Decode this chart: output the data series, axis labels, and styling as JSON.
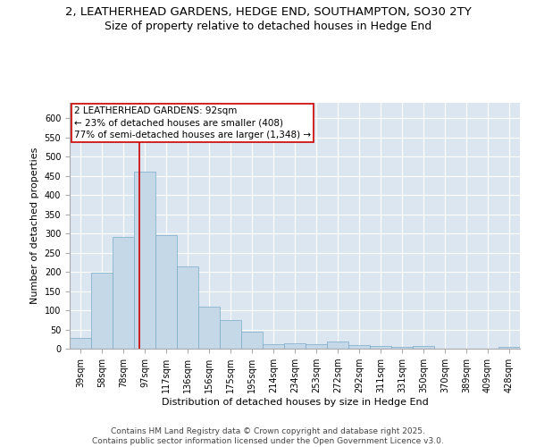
{
  "title_line1": "2, LEATHERHEAD GARDENS, HEDGE END, SOUTHAMPTON, SO30 2TY",
  "title_line2": "Size of property relative to detached houses in Hedge End",
  "xlabel": "Distribution of detached houses by size in Hedge End",
  "ylabel": "Number of detached properties",
  "categories": [
    "39sqm",
    "58sqm",
    "78sqm",
    "97sqm",
    "117sqm",
    "136sqm",
    "156sqm",
    "175sqm",
    "195sqm",
    "214sqm",
    "234sqm",
    "253sqm",
    "272sqm",
    "292sqm",
    "311sqm",
    "331sqm",
    "350sqm",
    "370sqm",
    "389sqm",
    "409sqm",
    "428sqm"
  ],
  "values": [
    28,
    197,
    290,
    460,
    295,
    215,
    110,
    75,
    45,
    12,
    13,
    11,
    18,
    10,
    7,
    5,
    6,
    0,
    0,
    0,
    5
  ],
  "bar_color": "#c5d8e8",
  "bar_edge_color": "#7aaac8",
  "background_color": "#dce6f0",
  "grid_color": "#ffffff",
  "annotation_text": "2 LEATHERHEAD GARDENS: 92sqm\n← 23% of detached houses are smaller (408)\n77% of semi-detached houses are larger (1,348) →",
  "annotation_box_edge": "#cc0000",
  "vline_color": "#cc0000",
  "vline_pos": 2.74,
  "ylim": [
    0,
    640
  ],
  "yticks": [
    0,
    50,
    100,
    150,
    200,
    250,
    300,
    350,
    400,
    450,
    500,
    550,
    600
  ],
  "footnote": "Contains HM Land Registry data © Crown copyright and database right 2025.\nContains public sector information licensed under the Open Government Licence v3.0.",
  "title_fontsize": 9.5,
  "subtitle_fontsize": 9,
  "axis_label_fontsize": 8,
  "tick_fontsize": 7,
  "annot_fontsize": 7.5,
  "footnote_fontsize": 6.5
}
